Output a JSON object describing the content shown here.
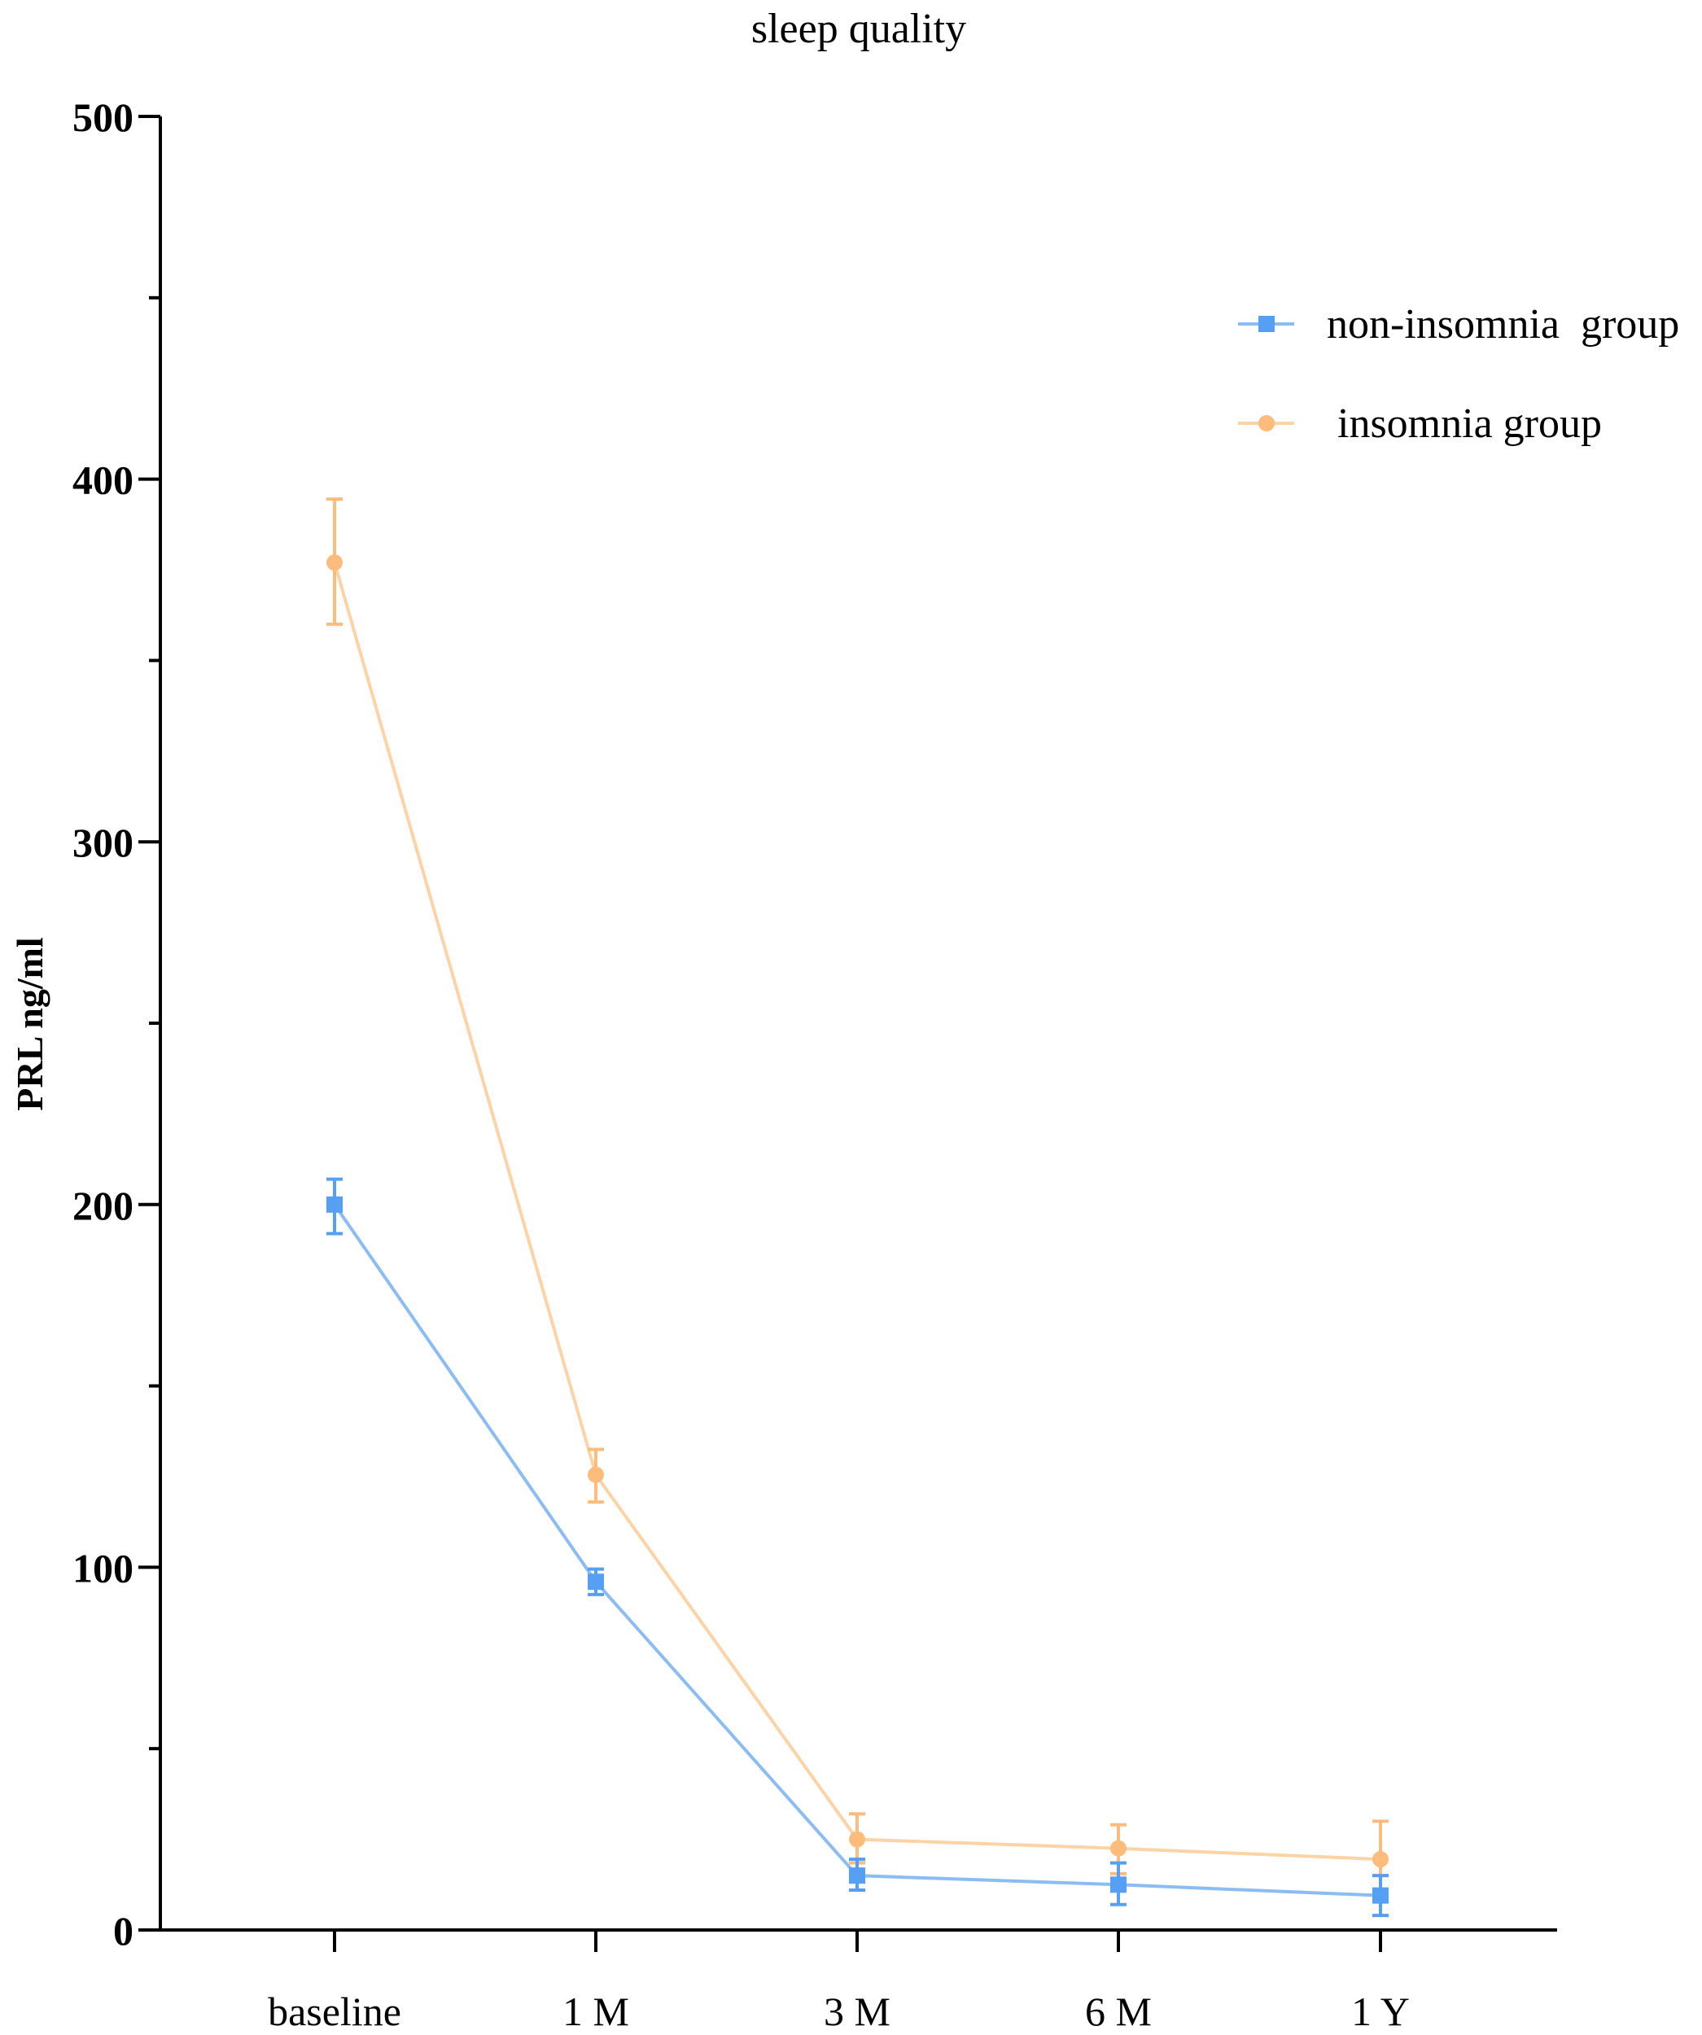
{
  "chart_data": {
    "type": "line",
    "title": "sleep quality",
    "xlabel": "",
    "ylabel": "PRL ng/ml",
    "categories": [
      "baseline",
      "1 M",
      "3 M",
      "6 M",
      "1 Y"
    ],
    "ylim": [
      0,
      500
    ],
    "yticks": [
      0,
      100,
      200,
      300,
      400,
      500
    ],
    "yticks_minor": [
      50,
      150,
      250,
      350,
      450
    ],
    "yticks_labels": [
      "0",
      "100",
      "200",
      "300",
      "400",
      "500"
    ],
    "grid": false,
    "legend_position": "upper right",
    "error_bars": true,
    "series": [
      {
        "name": "non-insomnia  group",
        "marker": "square",
        "color": "#559ff5",
        "line_color": "#8bbcf3",
        "values": [
          200,
          96,
          15,
          12.5,
          9.5
        ],
        "error_upper": [
          207,
          99.5,
          19.5,
          18.5,
          15
        ],
        "error_lower": [
          192,
          92.5,
          11,
          7,
          4
        ]
      },
      {
        "name": " insomnia group",
        "marker": "circle",
        "color": "#fdbc7b",
        "line_color": "#fdd3a5",
        "values": [
          377,
          125.5,
          25,
          22.5,
          19.5
        ],
        "error_upper": [
          394.5,
          132.5,
          32,
          29,
          30
        ],
        "error_lower": [
          360,
          118,
          18.5,
          15.5,
          15
        ]
      }
    ]
  }
}
